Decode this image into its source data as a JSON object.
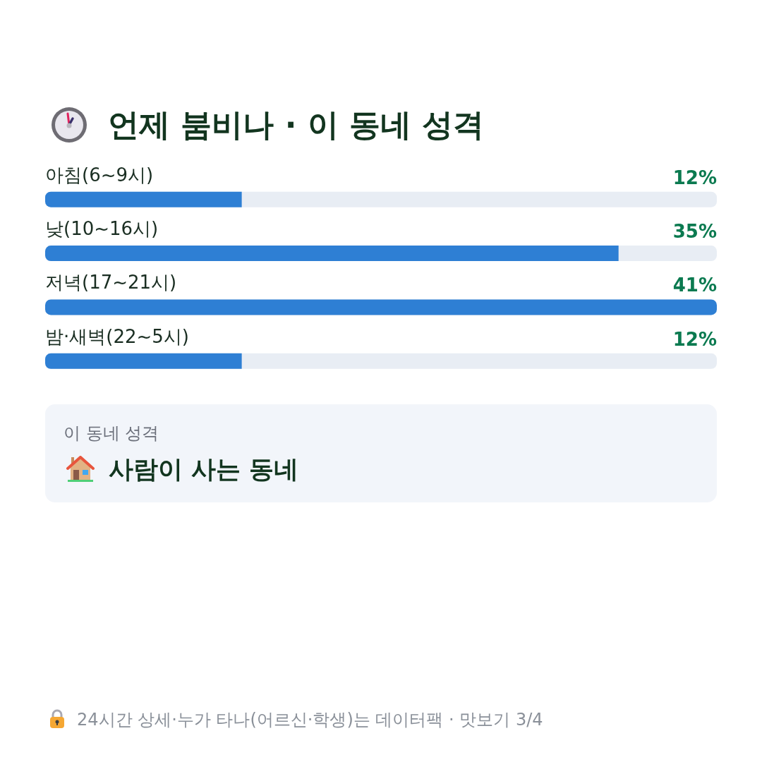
{
  "chart_data": {
    "type": "bar",
    "orientation": "horizontal",
    "title": "언제 붐비나 · 이 동네 성격",
    "categories": [
      "아침(6~9시)",
      "낮(10~16시)",
      "저녁(17~21시)",
      "밤·새벽(22~5시)"
    ],
    "values": [
      12,
      35,
      41,
      12
    ],
    "value_labels": [
      "12%",
      "35%",
      "41%",
      "12%"
    ],
    "color": "#2e7fd4",
    "annotations": [
      "이 동네 성격",
      "사람이 사는 동네",
      "24시간 상세·누가 타나(어르신·학생)는 데이터팩 · 맛보기 3/4"
    ],
    "tick_labels": "y"
  }
}
